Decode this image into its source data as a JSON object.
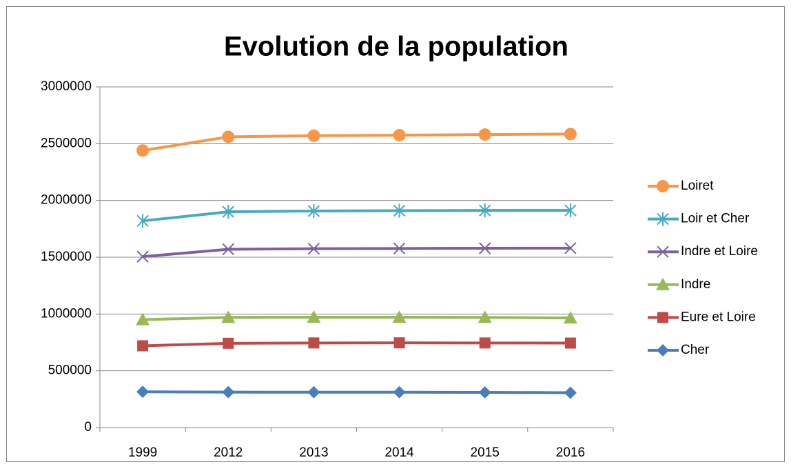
{
  "chart_data": {
    "type": "line",
    "stacked": true,
    "title": "Evolution de la population",
    "categories": [
      "1999",
      "2012",
      "2013",
      "2014",
      "2015",
      "2016"
    ],
    "series": [
      {
        "name": "Cher",
        "color": "#4a7ebb",
        "marker": "diamond",
        "values": [
          315000,
          312000,
          311000,
          311000,
          310000,
          307000
        ]
      },
      {
        "name": "Eure et Loire",
        "color": "#be4b48",
        "marker": "square",
        "values": [
          405000,
          430000,
          434000,
          435000,
          435000,
          437000
        ]
      },
      {
        "name": "Indre",
        "color": "#98b954",
        "marker": "triangle",
        "values": [
          230000,
          228000,
          227000,
          226000,
          225000,
          221000
        ]
      },
      {
        "name": "Indre et Loire",
        "color": "#7d60a0",
        "marker": "x",
        "values": [
          555000,
          600000,
          603000,
          605000,
          609000,
          615000
        ]
      },
      {
        "name": "Loir et Cher",
        "color": "#46aac5",
        "marker": "star",
        "values": [
          315000,
          330000,
          332000,
          333000,
          333000,
          332000
        ]
      },
      {
        "name": "Loiret",
        "color": "#f79646",
        "marker": "circle",
        "values": [
          620000,
          660000,
          663000,
          665000,
          668000,
          673000
        ]
      }
    ],
    "ylim": [
      0,
      3000000
    ],
    "yticks": [
      0,
      500000,
      1000000,
      1500000,
      2000000,
      2500000,
      3000000
    ],
    "grid": true,
    "legend": "right"
  }
}
